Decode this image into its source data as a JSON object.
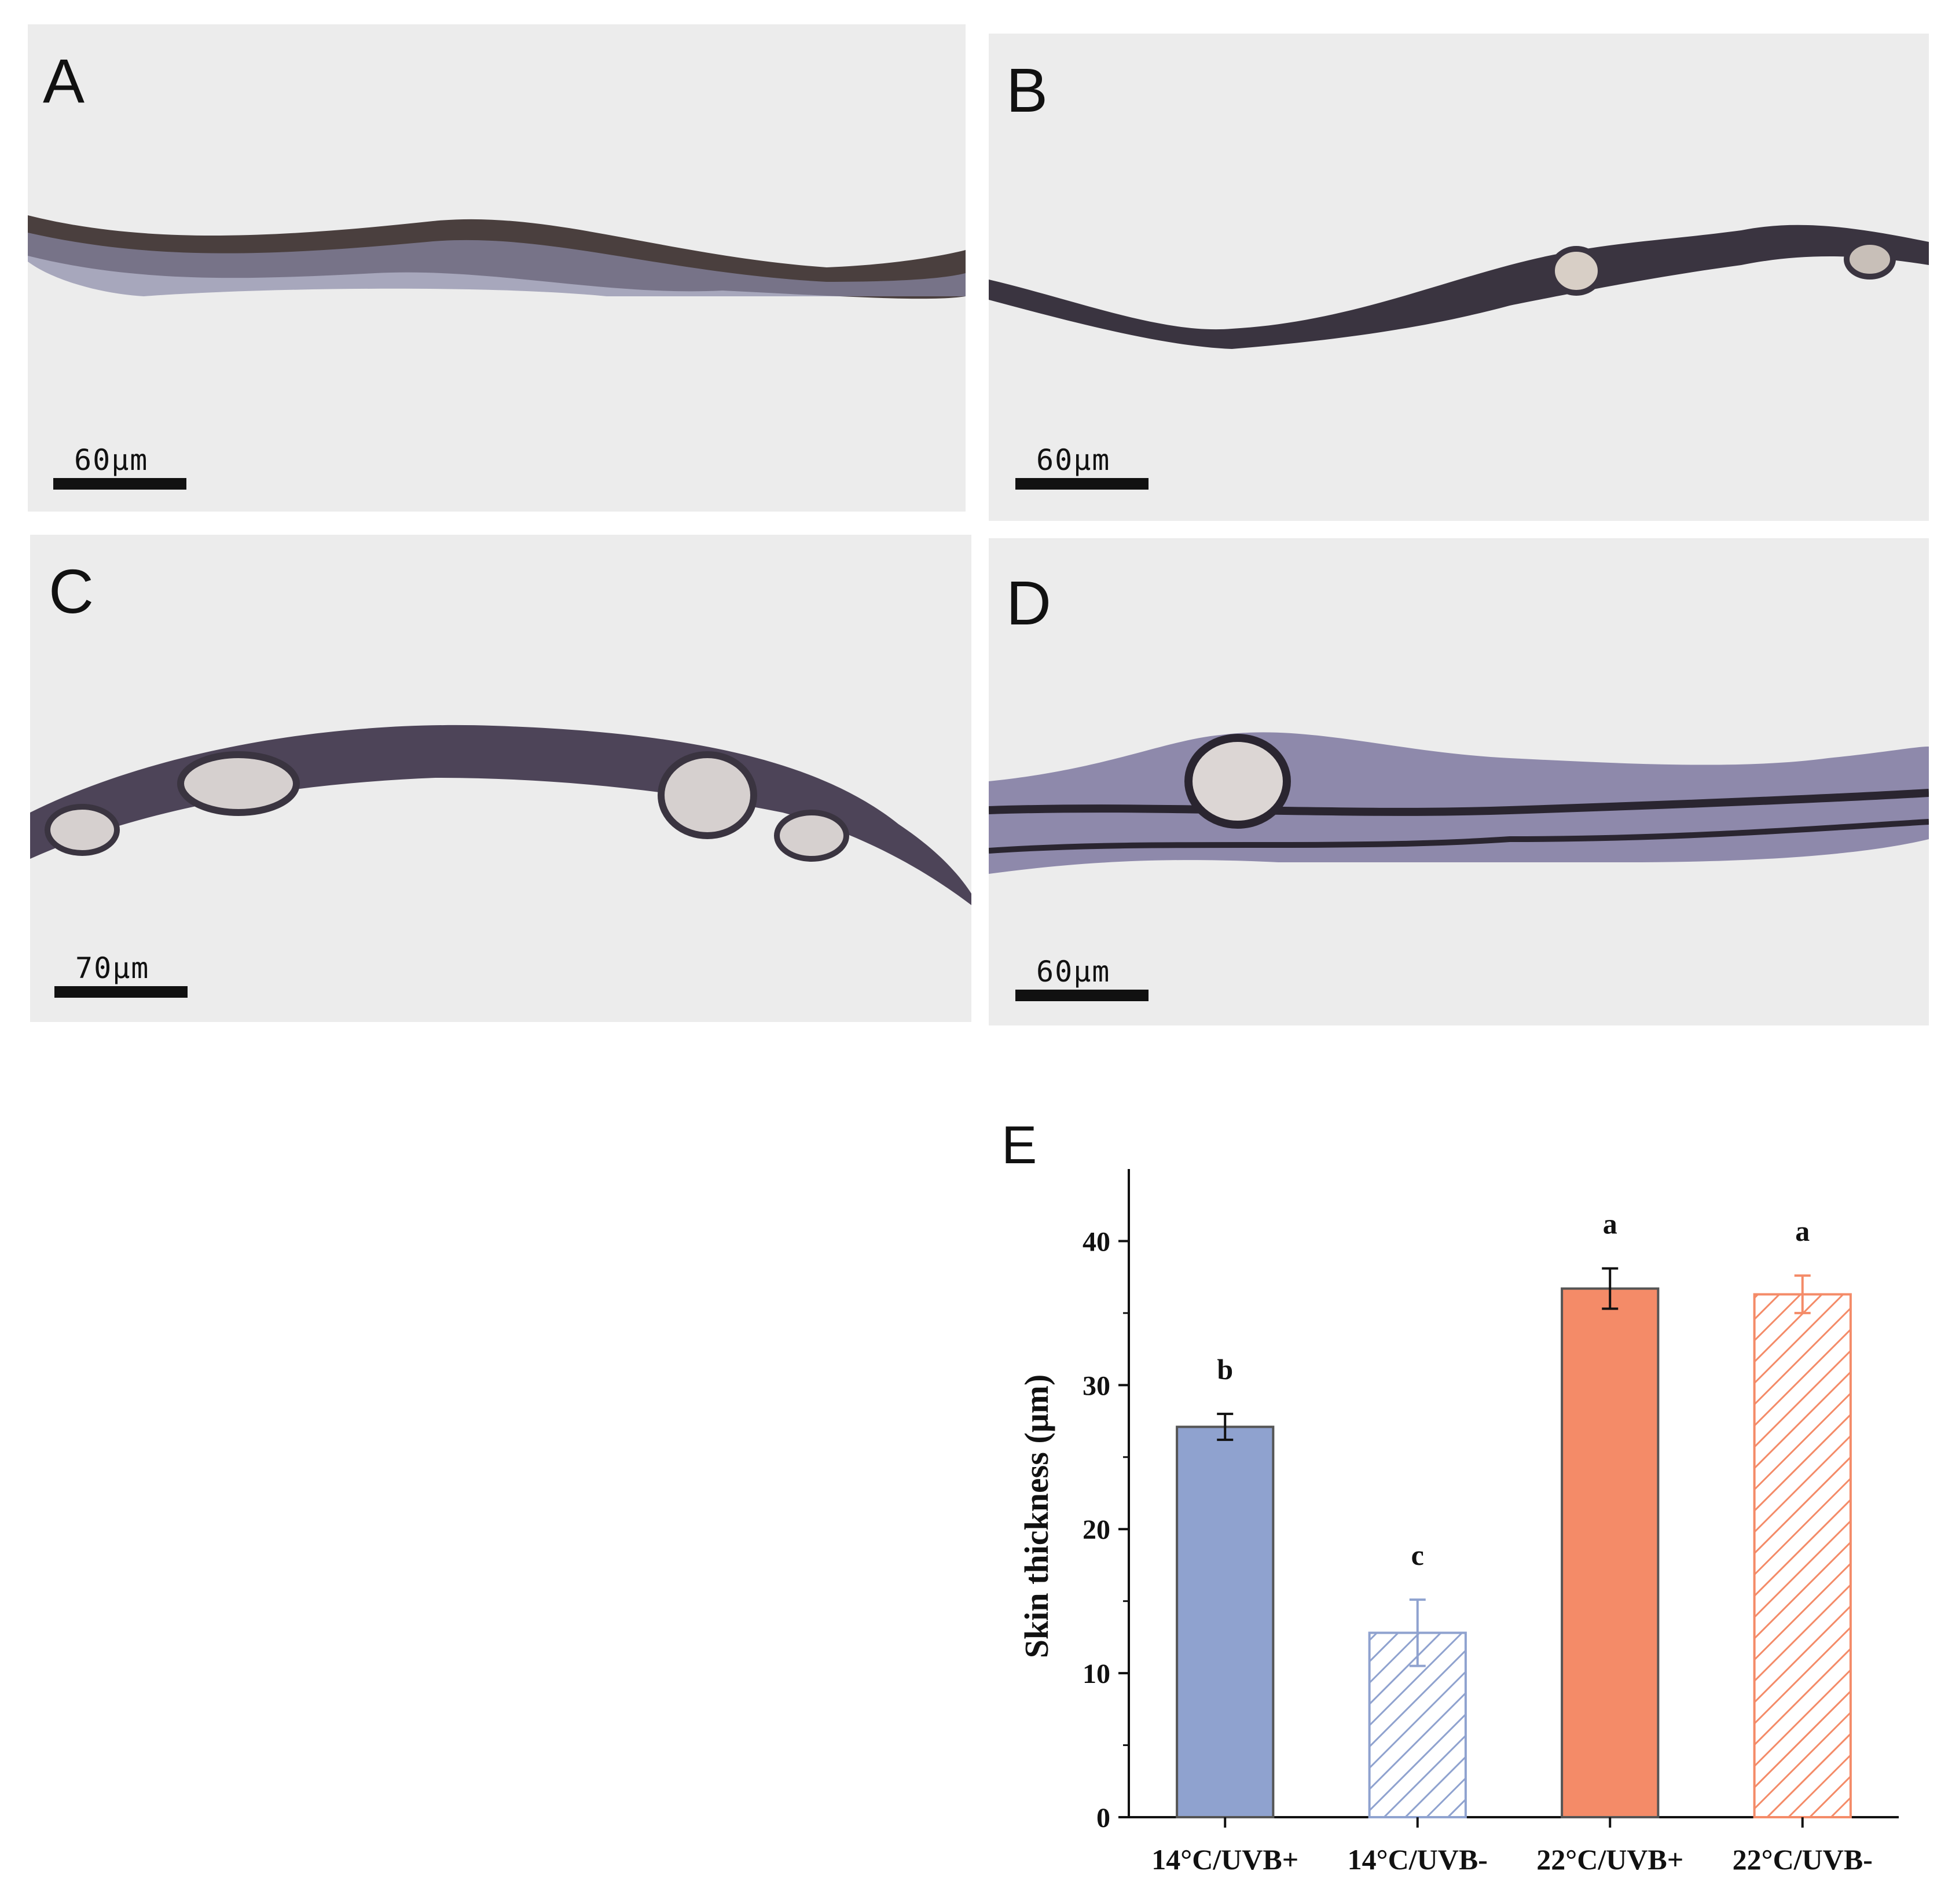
{
  "panels": [
    {
      "letter": "A",
      "scale": "60μm"
    },
    {
      "letter": "B",
      "scale": "60μm"
    },
    {
      "letter": "C",
      "scale": "70μm"
    },
    {
      "letter": "D",
      "scale": "60μm"
    }
  ],
  "chart_letter": "E",
  "colors": {
    "blue": "#8fa2cf",
    "orange": "#f48b68",
    "outline": "#555555"
  },
  "chart_data": {
    "type": "bar",
    "categories": [
      "14°C/UVB+",
      "14°C/UVB-",
      "22°C/UVB+",
      "22°C/UVB-"
    ],
    "values": [
      27.1,
      12.8,
      36.7,
      36.3
    ],
    "errors": [
      0.9,
      2.3,
      1.4,
      1.3
    ],
    "significance": [
      "b",
      "c",
      "a",
      "a"
    ],
    "fill": [
      "solid",
      "hatched",
      "solid",
      "hatched"
    ],
    "colors": [
      "#8fa2cf",
      "#8fa2cf",
      "#f48b68",
      "#f48b68"
    ],
    "xlabel": "",
    "ylabel": "Skin thickness (μm)",
    "ylim": [
      0,
      45
    ],
    "yticks": [
      0,
      10,
      20,
      30,
      40
    ],
    "grid": false
  }
}
